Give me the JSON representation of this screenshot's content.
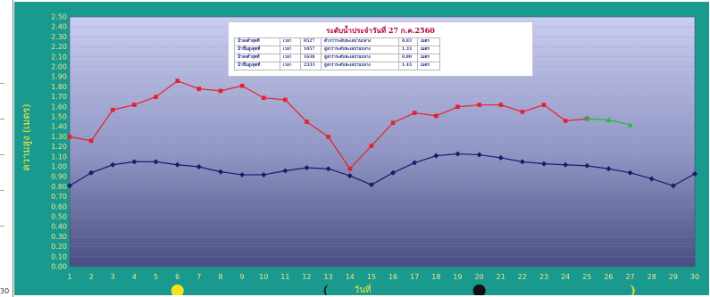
{
  "chart_data": {
    "type": "line",
    "title": "",
    "xlabel": "วันที่",
    "ylabel": "ความสูง (เมตร)",
    "x": [
      1,
      2,
      3,
      4,
      5,
      6,
      7,
      8,
      9,
      10,
      11,
      12,
      13,
      14,
      15,
      16,
      17,
      18,
      19,
      20,
      21,
      22,
      23,
      24,
      25,
      26,
      27,
      28,
      29,
      30
    ],
    "xlim": [
      1,
      30
    ],
    "ylim": [
      0,
      2.5
    ],
    "yticks": [
      0.0,
      0.1,
      0.2,
      0.3,
      0.4,
      0.5,
      0.6,
      0.7,
      0.8,
      0.9,
      1.0,
      1.1,
      1.2,
      1.3,
      1.4,
      1.5,
      1.6,
      1.7,
      1.8,
      1.9,
      2.0,
      2.1,
      2.2,
      2.3,
      2.4,
      2.5
    ],
    "grid": true,
    "legend_placement": "top-center",
    "series": [
      {
        "color": "#e8202a",
        "marker": "square",
        "values": [
          1.3,
          1.26,
          1.57,
          1.62,
          1.7,
          1.86,
          1.78,
          1.76,
          1.81,
          1.69,
          1.67,
          1.45,
          1.3,
          0.98,
          1.21,
          1.44,
          1.54,
          1.51,
          1.6,
          1.62,
          1.62,
          1.55,
          1.62,
          1.46,
          1.48,
          null,
          null,
          null,
          null,
          null
        ]
      },
      {
        "color": "#22bb33",
        "marker": "triangle",
        "values": [
          null,
          null,
          null,
          null,
          null,
          null,
          null,
          null,
          null,
          null,
          null,
          null,
          null,
          null,
          null,
          null,
          null,
          null,
          null,
          null,
          null,
          null,
          null,
          null,
          1.48,
          1.47,
          1.42,
          null,
          null,
          null
        ]
      },
      {
        "color": "#1a1a6e",
        "marker": "diamond",
        "values": [
          0.81,
          0.94,
          1.02,
          1.05,
          1.05,
          1.02,
          1.0,
          0.95,
          0.92,
          0.92,
          0.96,
          0.99,
          0.98,
          0.91,
          0.82,
          0.94,
          1.04,
          1.11,
          1.13,
          1.12,
          1.09,
          1.05,
          1.03,
          1.02,
          1.01,
          0.98,
          0.94,
          0.88,
          0.81,
          0.93
        ]
      }
    ],
    "moon_phases": [
      {
        "day": 6,
        "phase": "full",
        "color": "#f7e31a"
      },
      {
        "day": 13,
        "phase": "last-quarter",
        "color": "#1a1a1a"
      },
      {
        "day": 20,
        "phase": "new",
        "color": "#111111"
      },
      {
        "day": 27,
        "phase": "first-quarter",
        "color": "#f7e31a"
      }
    ],
    "legend": {
      "title": "ระดับน้ำประจำวันที่ 27 ก.ค.2560",
      "rows": [
        [
          "น้ำลงต่ำสุดที่",
          "เวลา",
          "0527",
          "ต่ำกว่าระดับทะเลปานกลาง",
          "0.83",
          "เมตร"
        ],
        [
          "น้ำขึ้นสูงสุดที่",
          "เวลา",
          "1057",
          "สูงกว่าระดับทะเลปานกลาง",
          "1.33",
          "เมตร"
        ],
        [
          "น้ำลงต่ำสุดที่",
          "เวลา",
          "1638",
          "สูงกว่าระดับทะเลปานกลาง",
          "0.80",
          "เมตร"
        ],
        [
          "น้ำขึ้นสูงสุดที่",
          "เวลา",
          "2333",
          "สูงกว่าระดับทะเลปานกลาง",
          "1.43",
          "เมตร"
        ]
      ]
    }
  },
  "left_panel": {
    "corner_label": "30"
  },
  "colors": {
    "panel_bg": "#1a9a8e",
    "plot_top": "#c9cdf0",
    "plot_bottom": "#4a4e80",
    "axis_text": "#f1e58a",
    "y_title": "#f4ec3a"
  }
}
